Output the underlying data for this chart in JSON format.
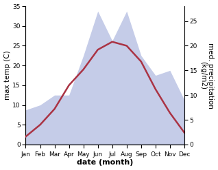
{
  "months": [
    "Jan",
    "Feb",
    "Mar",
    "Apr",
    "May",
    "Jun",
    "Jul",
    "Aug",
    "Sep",
    "Oct",
    "Nov",
    "Dec"
  ],
  "max_temp": [
    2,
    5,
    9,
    15,
    19,
    24,
    26,
    25,
    21,
    14,
    8,
    3
  ],
  "precipitation": [
    7,
    8,
    10,
    10,
    18,
    27,
    21,
    27,
    18,
    14,
    15,
    9
  ],
  "temp_color": "#aa3344",
  "precip_fill_color": "#c5cce8",
  "temp_ylim": [
    0,
    35
  ],
  "precip_ylim": [
    0,
    28
  ],
  "temp_yticks": [
    0,
    5,
    10,
    15,
    20,
    25,
    30,
    35
  ],
  "precip_yticks": [
    0,
    5,
    10,
    15,
    20,
    25
  ],
  "xlabel": "date (month)",
  "ylabel_left": "max temp (C)",
  "ylabel_right": "med. precipitation\n(kg/m2)",
  "label_fontsize": 7.5,
  "tick_fontsize": 6.5
}
